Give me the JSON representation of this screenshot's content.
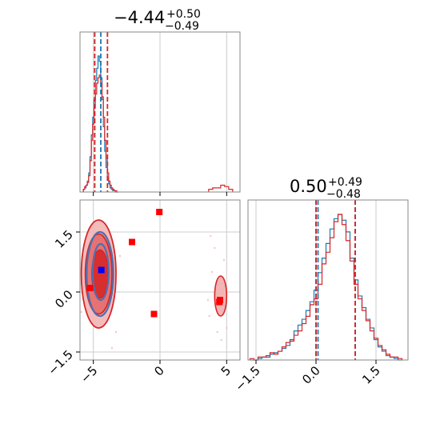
{
  "chart_data": {
    "type": "corner",
    "grid": true,
    "colors": {
      "blue": "#1f77b4",
      "red": "#d62728",
      "marker_blue": "#0000ff",
      "marker_red": "#ff0000",
      "axis": "#000000",
      "grid": "#cccccc"
    },
    "titles": [
      {
        "param": 1,
        "value": "−4.44",
        "plus": "+0.50",
        "minus": "−0.49"
      },
      {
        "param": 2,
        "value": "0.50",
        "plus": "+0.49",
        "minus": "−0.48"
      }
    ],
    "param1": {
      "range": [
        -6.0,
        6.0
      ],
      "ticks": [
        -5,
        0,
        5
      ],
      "tick_labels": [
        "−5",
        "0",
        "5"
      ],
      "quantiles_blue": [
        -4.9,
        -4.44
      ],
      "quantiles_red": [
        -4.9,
        -3.94
      ],
      "hist_bins": [
        -5.7,
        -5.6,
        -5.5,
        -5.4,
        -5.3,
        -5.2,
        -5.1,
        -5.0,
        -4.9,
        -4.8,
        -4.7,
        -4.6,
        -4.5,
        -4.4,
        -4.3,
        -4.2,
        -4.1,
        -4.0,
        -3.9,
        -3.8,
        -3.7,
        -3.6,
        -3.5,
        -3.4,
        -3.3,
        -3.2
      ],
      "hist_blue": [
        0.02,
        0.03,
        0.05,
        0.08,
        0.14,
        0.26,
        0.42,
        0.55,
        0.68,
        0.82,
        0.91,
        1.0,
        0.96,
        0.84,
        0.68,
        0.48,
        0.3,
        0.18,
        0.1,
        0.06,
        0.03,
        0.02,
        0.01,
        0.01,
        0.0,
        0.0
      ],
      "hist_red": [
        0.02,
        0.04,
        0.05,
        0.07,
        0.12,
        0.23,
        0.38,
        0.5,
        0.62,
        0.72,
        0.8,
        0.84,
        0.86,
        0.8,
        0.7,
        0.55,
        0.38,
        0.25,
        0.14,
        0.08,
        0.05,
        0.03,
        0.02,
        0.01,
        0.01,
        0.0
      ],
      "hist_red_tail": {
        "x": [
          3.8,
          4.1,
          4.4,
          4.7,
          5.0,
          5.3
        ],
        "y": [
          0.02,
          0.03,
          0.03,
          0.05,
          0.04,
          0.02
        ]
      }
    },
    "param2": {
      "range": [
        -1.7,
        2.3
      ],
      "ticks": [
        -1.5,
        0.0,
        1.5
      ],
      "tick_labels": [
        "−1.5",
        "0.0",
        "1.5"
      ],
      "quantiles_blue": [
        0.0,
        0.05,
        0.98
      ],
      "quantiles_red": [
        0.0,
        0.98
      ],
      "hist_bins": [
        -1.6,
        -1.5,
        -1.4,
        -1.3,
        -1.2,
        -1.1,
        -1.0,
        -0.9,
        -0.8,
        -0.7,
        -0.6,
        -0.5,
        -0.4,
        -0.3,
        -0.2,
        -0.1,
        0.0,
        0.1,
        0.2,
        0.3,
        0.4,
        0.5,
        0.6,
        0.7,
        0.8,
        0.9,
        1.0,
        1.1,
        1.2,
        1.3,
        1.4,
        1.5,
        1.6,
        1.7,
        1.8,
        1.9,
        2.0,
        2.1
      ],
      "hist_blue": [
        0.0,
        0.0,
        0.01,
        0.02,
        0.02,
        0.04,
        0.05,
        0.06,
        0.08,
        0.1,
        0.14,
        0.2,
        0.24,
        0.28,
        0.34,
        0.4,
        0.48,
        0.6,
        0.7,
        0.8,
        0.9,
        0.97,
        1.0,
        0.96,
        0.88,
        0.7,
        0.55,
        0.44,
        0.36,
        0.28,
        0.22,
        0.14,
        0.09,
        0.06,
        0.03,
        0.02,
        0.01,
        0.0
      ],
      "hist_red": [
        0.01,
        0.0,
        0.02,
        0.02,
        0.03,
        0.05,
        0.04,
        0.06,
        0.09,
        0.12,
        0.13,
        0.17,
        0.2,
        0.25,
        0.3,
        0.38,
        0.42,
        0.52,
        0.66,
        0.74,
        0.84,
        0.95,
        1.0,
        0.93,
        0.82,
        0.68,
        0.52,
        0.42,
        0.34,
        0.27,
        0.2,
        0.15,
        0.1,
        0.07,
        0.04,
        0.02,
        0.02,
        0.01
      ]
    },
    "joint": {
      "red_contours": [
        {
          "cx": -4.6,
          "cy": 0.45,
          "rx": 1.3,
          "ry": 1.35
        },
        {
          "cx": -4.6,
          "cy": 0.45,
          "rx": 1.0,
          "ry": 1.0
        },
        {
          "cx": -4.5,
          "cy": 0.45,
          "rx": 0.6,
          "ry": 0.6
        }
      ],
      "blue_contours": [
        {
          "cx": -4.5,
          "cy": 0.45,
          "rx": 1.0,
          "ry": 1.05
        },
        {
          "cx": -4.45,
          "cy": 0.5,
          "rx": 0.6,
          "ry": 0.7
        }
      ],
      "red_secondary_blob": {
        "cx": 4.55,
        "cy": -0.1,
        "rx": 0.45,
        "ry": 0.5
      },
      "red_markers": [
        {
          "x": -0.05,
          "y": 2.0
        },
        {
          "x": -2.1,
          "y": 1.25
        },
        {
          "x": -0.45,
          "y": -0.55
        },
        {
          "x": -5.25,
          "y": 0.1
        },
        {
          "x": 4.5,
          "y": -0.2
        },
        {
          "x": 4.45,
          "y": -0.25
        }
      ],
      "blue_markers": [
        {
          "x": -4.4,
          "y": 0.55
        }
      ],
      "outlier_points": [
        {
          "x": 3.9,
          "y": 0.5
        },
        {
          "x": 4.1,
          "y": 1.1
        },
        {
          "x": 4.3,
          "y": -1.0
        },
        {
          "x": 3.7,
          "y": -0.6
        },
        {
          "x": 4.8,
          "y": 0.8
        },
        {
          "x": 5.0,
          "y": -0.9
        },
        {
          "x": 3.8,
          "y": 1.4
        },
        {
          "x": 4.6,
          "y": -1.2
        },
        {
          "x": 4.2,
          "y": 0.2
        },
        {
          "x": 3.6,
          "y": -0.2
        },
        {
          "x": -3.3,
          "y": -1.0
        },
        {
          "x": -3.0,
          "y": 0.9
        },
        {
          "x": -5.9,
          "y": -0.5
        },
        {
          "x": -3.6,
          "y": -1.4
        }
      ]
    }
  }
}
